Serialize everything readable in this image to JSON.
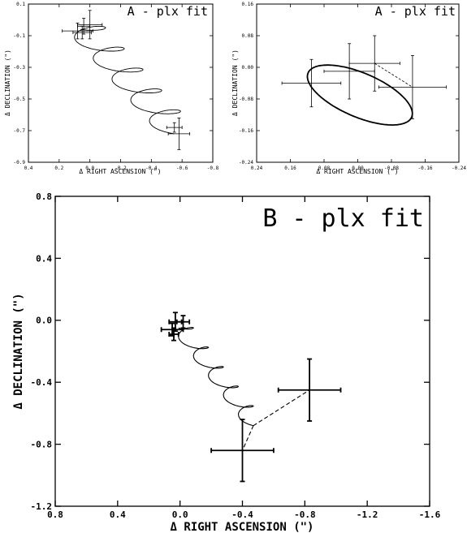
{
  "chart_data": [
    {
      "type": "scatter",
      "title": "A - plx fit",
      "xlabel": "Δ RIGHT ASCENSION (\")",
      "ylabel": "Δ DECLINATION (\")",
      "xlim": [
        0.4,
        -0.8
      ],
      "ylim": [
        -0.9,
        0.1
      ],
      "xticks": [
        0.4,
        0.2,
        0.0,
        -0.2,
        -0.4,
        -0.6,
        -0.8
      ],
      "xtick_labels": [
        "0.4",
        "0.2",
        "0.0",
        "-0.2",
        "-0.4",
        "-0.6",
        "-0.8"
      ],
      "yticks": [
        0.1,
        -0.1,
        -0.3,
        -0.5,
        -0.7,
        -0.9
      ],
      "ytick_labels": [
        "0.1",
        "-0.1",
        "-0.3",
        "-0.5",
        "-0.7",
        "-0.9"
      ],
      "points": [
        {
          "x": 0.0,
          "y": -0.03,
          "xerr": 0.08,
          "yerr": 0.09
        },
        {
          "x": 0.05,
          "y": -0.08,
          "xerr": 0.06,
          "yerr": 0.04
        },
        {
          "x": 0.08,
          "y": -0.07,
          "xerr": 0.1,
          "yerr": 0.05
        },
        {
          "x": 0.04,
          "y": -0.04,
          "xerr": 0.04,
          "yerr": 0.05
        },
        {
          "x": -0.55,
          "y": -0.68,
          "xerr": 0.05,
          "yerr": 0.03
        },
        {
          "x": -0.58,
          "y": -0.72,
          "xerr": 0.07,
          "yerr": 0.1
        }
      ],
      "curve": {
        "type": "parallax-spiral",
        "start": [
          0.06,
          -0.06
        ],
        "end": [
          -0.55,
          -0.72
        ],
        "loops": 5,
        "amp": [
          0.13,
          0.04
        ]
      }
    },
    {
      "type": "scatter",
      "title": "A - plx fit",
      "xlabel": "Δ RIGHT ASCENSION (\")",
      "ylabel": "Δ DECLINATION (\")",
      "xlim": [
        0.24,
        -0.24
      ],
      "ylim": [
        -0.24,
        0.16
      ],
      "xticks": [
        0.24,
        0.16,
        0.08,
        0.0,
        -0.08,
        -0.16,
        -0.24
      ],
      "xtick_labels": [
        "0.24",
        "0.16",
        "0.08",
        "0.00",
        "-0.08",
        "-0.16",
        "-0.24"
      ],
      "yticks": [
        0.16,
        0.08,
        0.0,
        -0.08,
        -0.16,
        -0.24
      ],
      "ytick_labels": [
        "0.16",
        "0.08",
        "0.00",
        "-0.08",
        "-0.16",
        "-0.24"
      ],
      "points": [
        {
          "x": 0.11,
          "y": -0.04,
          "xerr": 0.07,
          "yerr": 0.06
        },
        {
          "x": 0.02,
          "y": -0.01,
          "xerr": 0.06,
          "yerr": 0.07
        },
        {
          "x": -0.04,
          "y": 0.01,
          "xerr": 0.06,
          "yerr": 0.07
        },
        {
          "x": -0.13,
          "y": -0.05,
          "xerr": 0.08,
          "yerr": 0.08
        }
      ],
      "ellipse": {
        "cx": -0.005,
        "cy": -0.07,
        "rx": 0.135,
        "ry": 0.055,
        "angle_deg": 25
      },
      "links": [
        [
          2,
          3
        ]
      ]
    },
    {
      "type": "scatter",
      "title": "B - plx fit",
      "xlabel": "Δ RIGHT ASCENSION (\")",
      "ylabel": "Δ DECLINATION (\")",
      "xlim": [
        0.8,
        -1.6
      ],
      "ylim": [
        -1.2,
        0.8
      ],
      "xticks": [
        0.8,
        0.4,
        0.0,
        -0.4,
        -0.8,
        -1.2,
        -1.6
      ],
      "xtick_labels": [
        "0.8",
        "0.4",
        "0.0",
        "-0.4",
        "-0.8",
        "-1.2",
        "-1.6"
      ],
      "yticks": [
        0.8,
        0.4,
        0.0,
        -0.4,
        -0.8,
        -1.2
      ],
      "ytick_labels": [
        "0.8",
        "0.4",
        "0.0",
        "-0.4",
        "-0.8",
        "-1.2"
      ],
      "points": [
        {
          "x": 0.03,
          "y": -0.01,
          "xerr": 0.04,
          "yerr": 0.06
        },
        {
          "x": -0.02,
          "y": -0.01,
          "xerr": 0.04,
          "yerr": 0.04
        },
        {
          "x": 0.05,
          "y": -0.06,
          "xerr": 0.07,
          "yerr": 0.04
        },
        {
          "x": 0.04,
          "y": -0.09,
          "xerr": 0.03,
          "yerr": 0.04
        },
        {
          "x": -0.4,
          "y": -0.84,
          "xerr": 0.2,
          "yerr": 0.2
        },
        {
          "x": -0.83,
          "y": -0.45,
          "xerr": 0.2,
          "yerr": 0.2
        }
      ],
      "curve": {
        "type": "parallax-spiral",
        "start": [
          0.01,
          -0.05
        ],
        "end": [
          -0.47,
          -0.68
        ],
        "loops": 5,
        "amp": [
          0.07,
          0.03
        ]
      },
      "dashed_paths": [
        [
          [
            -0.47,
            -0.68
          ],
          [
            -0.4,
            -0.84
          ]
        ],
        [
          [
            -0.47,
            -0.68
          ],
          [
            -0.83,
            -0.45
          ]
        ]
      ]
    }
  ]
}
